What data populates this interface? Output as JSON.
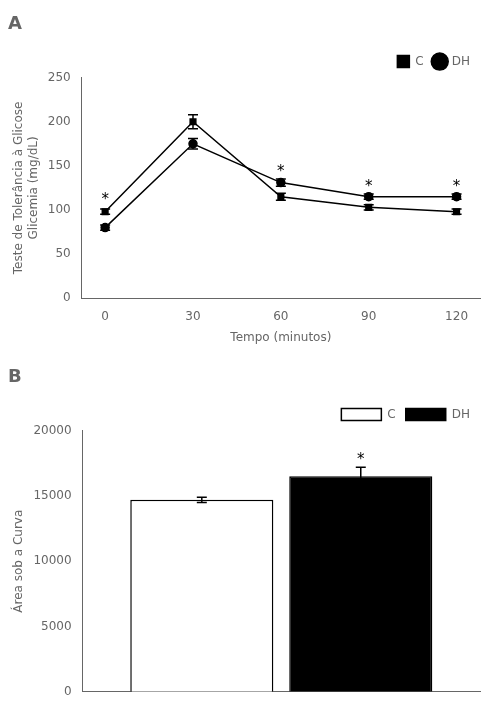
{
  "chart_data": [
    {
      "type": "line",
      "title": "A",
      "x": [
        0,
        30,
        60,
        90,
        120
      ],
      "series": [
        {
          "name": "C",
          "color": "#000000",
          "marker": "square",
          "values": [
            98,
            200,
            115,
            103,
            98
          ],
          "errors": [
            3,
            8,
            4,
            3,
            3
          ]
        },
        {
          "name": "DH",
          "color": "#000000",
          "marker": "circle",
          "values": [
            80,
            175,
            131,
            115,
            115
          ],
          "errors": [
            3,
            6,
            4,
            3,
            3
          ]
        }
      ],
      "xlabel": "Tempo (minutos)",
      "ylabel": "Teste de Tolerância à Glicose\nGlicemia (mg/dL)",
      "xlim": [
        -8,
        128
      ],
      "xticks": [
        0,
        30,
        60,
        90,
        120
      ],
      "ylim": [
        0,
        250
      ],
      "yticks": [
        0,
        50,
        100,
        150,
        200,
        250
      ],
      "annotations": [
        {
          "x": 0,
          "y": 107,
          "text": "*"
        },
        {
          "x": 60,
          "y": 139,
          "text": "*"
        },
        {
          "x": 90,
          "y": 122,
          "text": "*"
        },
        {
          "x": 120,
          "y": 122,
          "text": "*"
        }
      ],
      "legend": "upper right",
      "grid": false
    },
    {
      "type": "bar",
      "title": "B",
      "categories": [
        null
      ],
      "series": [
        {
          "name": "C",
          "color": "#ffffff",
          "values": [
            14700
          ],
          "errors": [
            200
          ]
        },
        {
          "name": "DH",
          "color": "#000000",
          "values": [
            16500
          ],
          "errors": [
            700
          ]
        }
      ],
      "ylabel": "Área sob a Curva",
      "ylim": [
        0,
        20000
      ],
      "yticks": [
        0,
        5000,
        10000,
        15000,
        20000
      ],
      "annotations": [
        {
          "series": "DH",
          "y": 17500,
          "text": "*"
        }
      ],
      "legend": "upper right",
      "grid": false,
      "tick_labels": "y"
    }
  ]
}
